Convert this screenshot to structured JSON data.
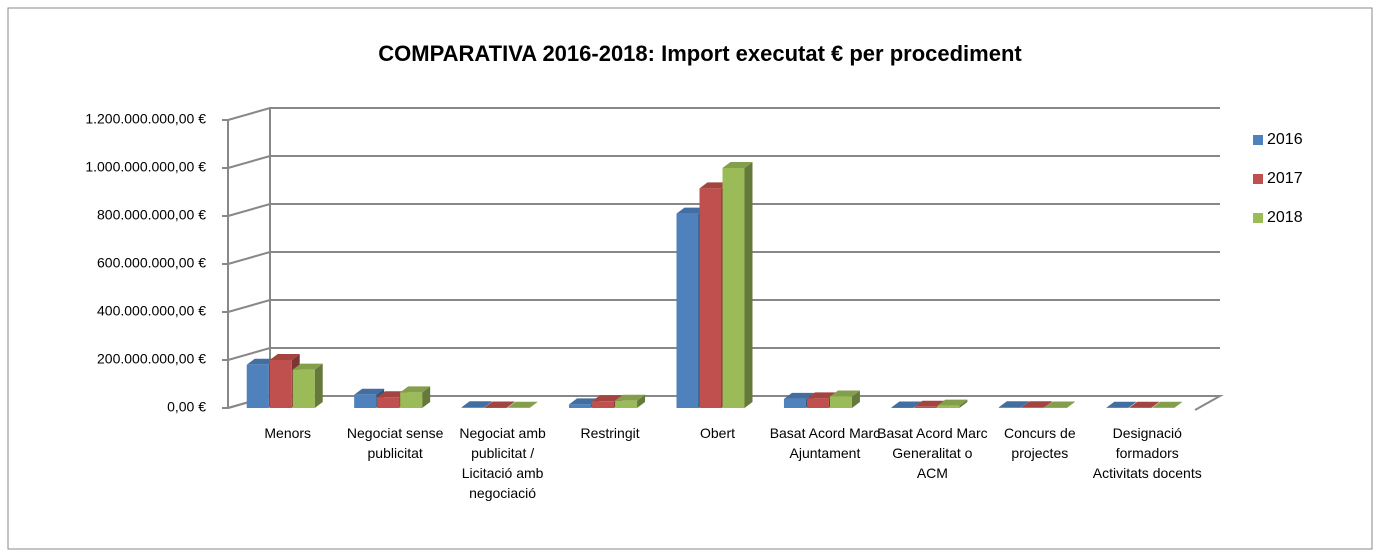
{
  "chart_data": {
    "type": "bar3d",
    "title": "COMPARATIVA 2016-2018: Import executat € per procediment",
    "categories": [
      "Menors",
      "Negociat sense publicitat",
      "Negociat amb publicitat / Licitació amb negociació",
      "Restringit",
      "Obert",
      "Basat Acord Marc Ajuntament",
      "Basat Acord Marc Generalitat o ACM",
      "Concurs de projectes",
      "Designació formadors Activitats docents"
    ],
    "series": [
      {
        "name": "2016",
        "color": "#4f81bd",
        "values": [
          180000000,
          55000000,
          3000000,
          15000000,
          810000000,
          38000000,
          2000000,
          3000000,
          1000000
        ]
      },
      {
        "name": "2017",
        "color": "#c0504d",
        "values": [
          200000000,
          45000000,
          2000000,
          28000000,
          915000000,
          40000000,
          5000000,
          3000000,
          1000000
        ]
      },
      {
        "name": "2018",
        "color": "#9bbb59",
        "values": [
          160000000,
          65000000,
          1000000,
          30000000,
          1000000000,
          48000000,
          10000000,
          2000000,
          1000000
        ]
      }
    ],
    "ylim": [
      0,
      1200000000
    ],
    "yticks": [
      {
        "value": 0,
        "label": "0,00 €"
      },
      {
        "value": 200000000,
        "label": "200.000.000,00 €"
      },
      {
        "value": 400000000,
        "label": "400.000.000,00 €"
      },
      {
        "value": 600000000,
        "label": "600.000.000,00 €"
      },
      {
        "value": 800000000,
        "label": "800.000.000,00 €"
      },
      {
        "value": 1000000000,
        "label": "1.000.000.000,00 €"
      },
      {
        "value": 1200000000,
        "label": "1.200.000.000,00 €"
      }
    ],
    "grid": true,
    "legend": "right"
  }
}
